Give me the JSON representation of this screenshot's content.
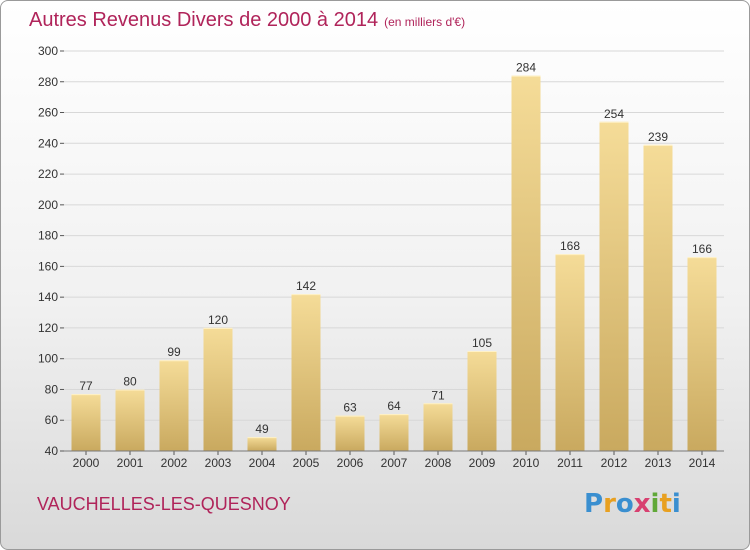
{
  "title": "Autres Revenus Divers de 2000 à 2014",
  "unit_note": "(en milliers d'€)",
  "commune": "VAUCHELLES-LES-QUESNOY",
  "logo": {
    "letters": [
      "P",
      "r",
      "o",
      "x",
      "i",
      "t",
      "i"
    ],
    "colors": [
      "#3a8fd0",
      "#e8a020",
      "#3a8fd0",
      "#d84070",
      "#60a838",
      "#e8a020",
      "#3a8fd0"
    ]
  },
  "colors": {
    "title": "#b0245a",
    "bar_top": "#f5dc98",
    "bar_bottom": "#c9a95f",
    "grid": "#d8d8d8",
    "axis_text": "#333333"
  },
  "chart_data": {
    "type": "bar",
    "categories": [
      "2000",
      "2001",
      "2002",
      "2003",
      "2004",
      "2005",
      "2006",
      "2007",
      "2008",
      "2009",
      "2010",
      "2011",
      "2012",
      "2013",
      "2014"
    ],
    "values": [
      77,
      80,
      99,
      120,
      49,
      142,
      63,
      64,
      71,
      105,
      284,
      168,
      254,
      239,
      166
    ],
    "ylim": [
      40,
      300
    ],
    "yticks": [
      40,
      60,
      80,
      100,
      120,
      140,
      160,
      180,
      200,
      220,
      240,
      260,
      280,
      300
    ],
    "grid": true
  }
}
